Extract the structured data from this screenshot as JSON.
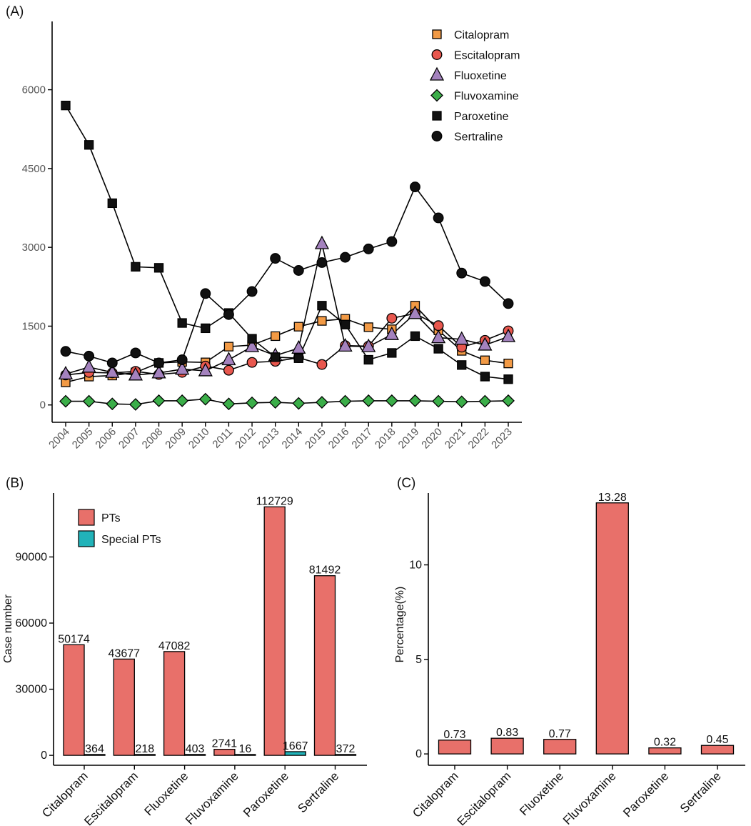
{
  "chart_data": [
    {
      "panel_label": "(A)",
      "type": "line",
      "x": [
        "2004",
        "2005",
        "2006",
        "2007",
        "2008",
        "2009",
        "2010",
        "2011",
        "2012",
        "2013",
        "2014",
        "2015",
        "2016",
        "2017",
        "2018",
        "2019",
        "2020",
        "2021",
        "2022",
        "2023"
      ],
      "y_ticks": [
        "0",
        "1500",
        "3000",
        "4500",
        "6000"
      ],
      "ylim": [
        -330,
        7300
      ],
      "title": "",
      "xlabel": "",
      "ylabel": "",
      "legend_position": "top-right",
      "series": [
        {
          "name": "Citalopram",
          "marker": "square",
          "color": "#F29A45",
          "values": [
            430,
            540,
            560,
            620,
            800,
            820,
            810,
            1110,
            1140,
            1310,
            1490,
            1600,
            1640,
            1480,
            1440,
            1890,
            1420,
            1030,
            850,
            790
          ]
        },
        {
          "name": "Escitalopram",
          "marker": "circle",
          "color": "#E8574E",
          "values": [
            570,
            620,
            610,
            640,
            580,
            620,
            740,
            660,
            810,
            830,
            900,
            770,
            1130,
            1120,
            1650,
            1740,
            1510,
            1100,
            1230,
            1410
          ]
        },
        {
          "name": "Fluoxetine",
          "marker": "triangle",
          "color": "#A482BE",
          "values": [
            590,
            720,
            620,
            570,
            610,
            680,
            650,
            860,
            1110,
            940,
            1080,
            3070,
            1120,
            1110,
            1340,
            1740,
            1280,
            1250,
            1140,
            1300
          ]
        },
        {
          "name": "Fluvoxamine",
          "marker": "diamond",
          "color": "#3BAE49",
          "values": [
            70,
            70,
            20,
            10,
            80,
            80,
            110,
            20,
            40,
            50,
            30,
            50,
            70,
            80,
            80,
            80,
            70,
            60,
            70,
            80
          ]
        },
        {
          "name": "Paroxetine",
          "marker": "square",
          "color": "#111111",
          "values": [
            5700,
            4950,
            3840,
            2630,
            2610,
            1560,
            1460,
            1750,
            1260,
            910,
            890,
            1890,
            1530,
            860,
            990,
            1310,
            1070,
            760,
            540,
            490
          ]
        },
        {
          "name": "Sertraline",
          "marker": "circle",
          "color": "#111111",
          "values": [
            1020,
            930,
            800,
            990,
            800,
            860,
            2120,
            1720,
            2160,
            2790,
            2560,
            2710,
            2810,
            2970,
            3110,
            4150,
            3560,
            2510,
            2350,
            1930
          ]
        }
      ]
    },
    {
      "panel_label": "(B)",
      "type": "bar",
      "categories": [
        "Citalopram",
        "Escitalopram",
        "Fluoxetine",
        "Fluvoxamine",
        "Paroxetine",
        "Sertraline"
      ],
      "ylabel": "Case number",
      "y_ticks": [
        "0",
        "30000",
        "60000",
        "90000"
      ],
      "ylim": [
        -4500,
        119000
      ],
      "legend_position": "top-left",
      "series": [
        {
          "name": "PTs",
          "color": "#E8706A",
          "values": [
            50174,
            43677,
            47082,
            2741,
            112729,
            81492
          ],
          "labels": [
            "50174",
            "43677",
            "47082",
            "2741",
            "112729",
            "81492"
          ]
        },
        {
          "name": "Special PTs",
          "color": "#21B3B9",
          "values": [
            364,
            218,
            403,
            16,
            1667,
            372
          ],
          "labels": [
            "364",
            "218",
            "403",
            "16",
            "1667",
            "372"
          ]
        }
      ]
    },
    {
      "panel_label": "(C)",
      "type": "bar",
      "categories": [
        "Citalopram",
        "Escitalopram",
        "Fluoxetine",
        "Fluvoxamine",
        "Paroxetine",
        "Sertraline"
      ],
      "ylabel": "Percentage(%)",
      "y_ticks": [
        "0",
        "5",
        "10"
      ],
      "ylim": [
        -0.6,
        13.8
      ],
      "series": [
        {
          "name": "Percentage",
          "color": "#E8706A",
          "values": [
            0.73,
            0.83,
            0.77,
            13.28,
            0.32,
            0.45
          ],
          "labels": [
            "0.73",
            "0.83",
            "0.77",
            "13.28",
            "0.32",
            "0.45"
          ]
        }
      ]
    }
  ]
}
